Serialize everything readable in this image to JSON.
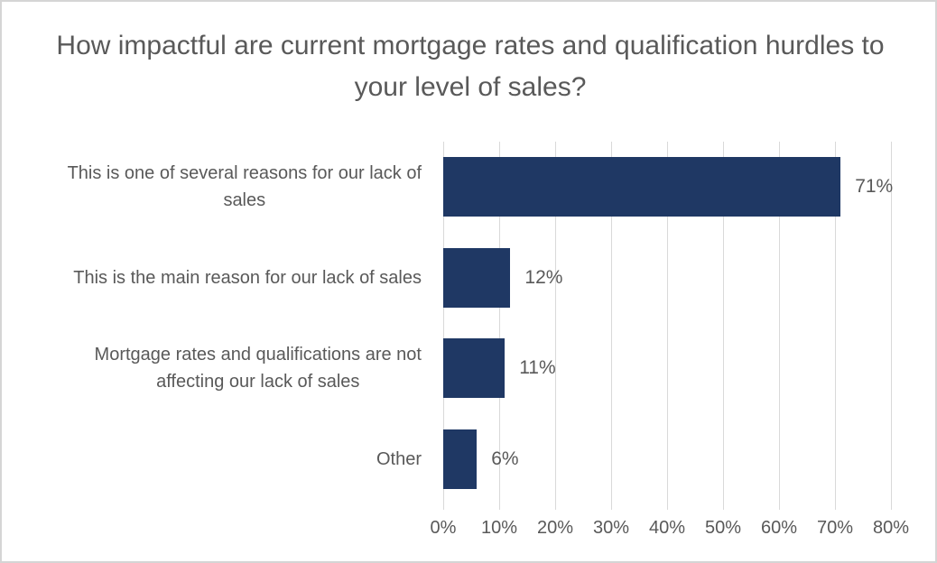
{
  "chart": {
    "background": "#ffffff",
    "frame_border_color": "#d5d5d5"
  },
  "chart_data": {
    "type": "bar",
    "orientation": "horizontal",
    "title": "How impactful are current mortgage rates and qualification hurdles to your level of sales?",
    "categories": [
      "This is one of several reasons for our lack of sales",
      "This is the main reason for our lack of sales",
      "Mortgage rates and qualifications are not affecting our lack of sales",
      "Other"
    ],
    "category_lines": [
      [
        "This is one of several reasons for our lack of",
        "sales"
      ],
      [
        "This is the main reason for our lack of sales"
      ],
      [
        "Mortgage rates and qualifications are not",
        "affecting our lack of sales"
      ],
      [
        "Other"
      ]
    ],
    "values": [
      71,
      12,
      11,
      6
    ],
    "data_labels": [
      "71%",
      "12%",
      "11%",
      "6%"
    ],
    "x_ticks": [
      {
        "value": 0,
        "label": "0%"
      },
      {
        "value": 10,
        "label": "10%"
      },
      {
        "value": 20,
        "label": "20%"
      },
      {
        "value": 30,
        "label": "30%"
      },
      {
        "value": 40,
        "label": "40%"
      },
      {
        "value": 50,
        "label": "50%"
      },
      {
        "value": 60,
        "label": "60%"
      },
      {
        "value": 70,
        "label": "70%"
      },
      {
        "value": 80,
        "label": "80%"
      }
    ],
    "xlim": [
      0,
      80
    ],
    "xlabel": "",
    "ylabel": "",
    "grid": true,
    "legend": false,
    "bar_color": "#1f3864",
    "gridline_color": "#d9d9d9",
    "text_color": "#595959"
  }
}
